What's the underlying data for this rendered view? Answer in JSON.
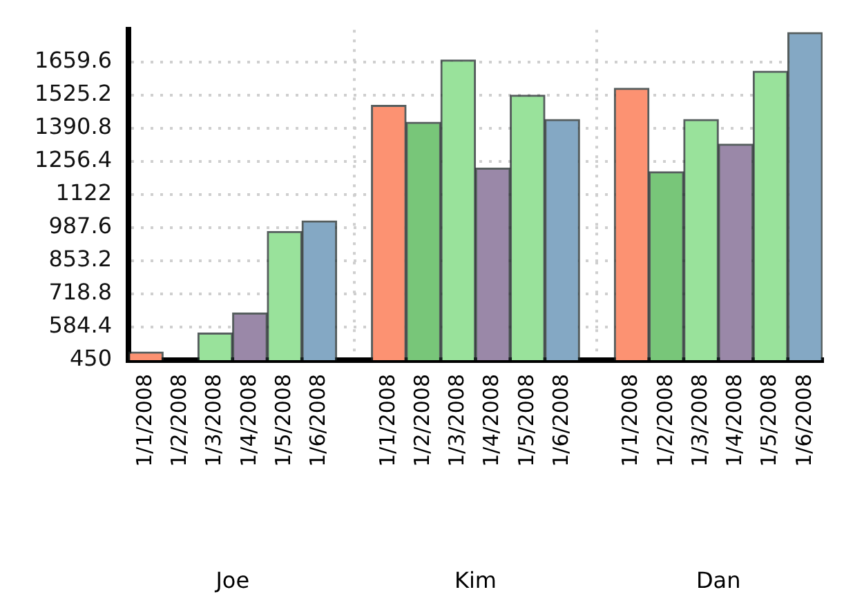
{
  "chart_data": {
    "type": "bar",
    "categories": [
      "1/1/2008",
      "1/2/2008",
      "1/3/2008",
      "1/4/2008",
      "1/5/2008",
      "1/6/2008",
      null,
      "1/1/2008",
      "1/2/2008",
      "1/3/2008",
      "1/4/2008",
      "1/5/2008",
      "1/6/2008",
      null,
      "1/1/2008",
      "1/2/2008",
      "1/3/2008",
      "1/4/2008",
      "1/5/2008",
      "1/6/2008"
    ],
    "series": [
      {
        "colors": [
          "#fc9272",
          "#78c679",
          "#99e29b",
          "#9a88a8",
          "#99e29b",
          "#84a8c4",
          null,
          "#fc9272",
          "#78c679",
          "#99e29b",
          "#9a88a8",
          "#99e29b",
          "#84a8c4",
          null,
          "#fc9272",
          "#78c679",
          "#99e29b",
          "#9a88a8",
          "#99e29b",
          "#84a8c4"
        ],
        "values": [
          483,
          null,
          560,
          641,
          972,
          1015,
          null,
          1484,
          1415,
          1668,
          1229,
          1525,
          1426,
          null,
          1553,
          1214,
          1426,
          1326,
          1622,
          1779
        ]
      }
    ],
    "annotations": [
      "Joe",
      "Kim",
      "Dan"
    ],
    "ylim": [
      450,
      1790
    ],
    "yticks": [
      450,
      584.4,
      718.8,
      853.2,
      987.6,
      1122,
      1256.4,
      1390.8,
      1525.2,
      1659.6
    ],
    "grid": true,
    "legend": false
  }
}
